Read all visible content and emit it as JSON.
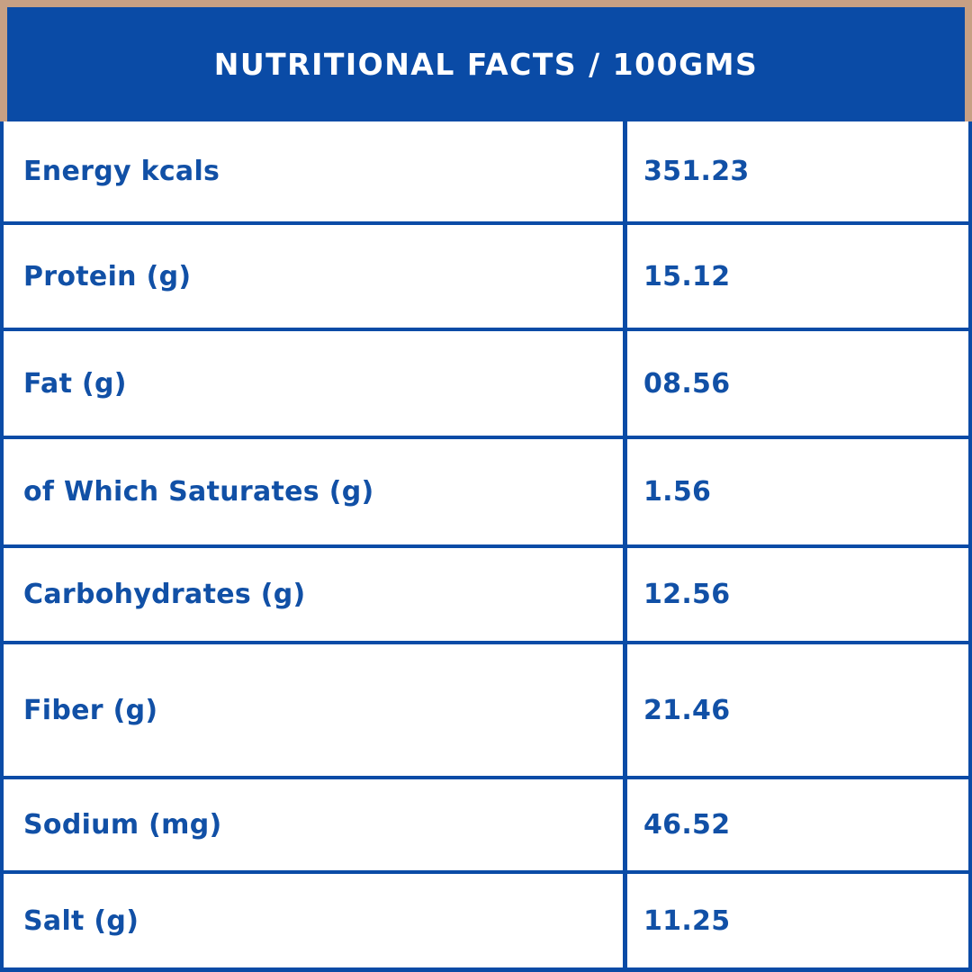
{
  "header": {
    "title": "NUTRITIONAL FACTS / 100GMS"
  },
  "table": {
    "rows": [
      {
        "label": "Energy kcals",
        "value": "351.23"
      },
      {
        "label": "Protein (g)",
        "value": "15.12"
      },
      {
        "label": "Fat (g)",
        "value": "08.56"
      },
      {
        "label": "of Which Saturates (g)",
        "value": "1.56"
      },
      {
        "label": "Carbohydrates (g)",
        "value": "12.56"
      },
      {
        "label": "Fiber (g)",
        "value": "21.46"
      },
      {
        "label": "Sodium (mg)",
        "value": "46.52"
      },
      {
        "label": "Salt (g)",
        "value": "11.25"
      }
    ]
  },
  "colors": {
    "accent_blue": "#0a4ba6",
    "text_blue": "#1150a6",
    "frame_tan": "#c7a084",
    "header_text": "#ffffff",
    "row_background": "#ffffff"
  }
}
